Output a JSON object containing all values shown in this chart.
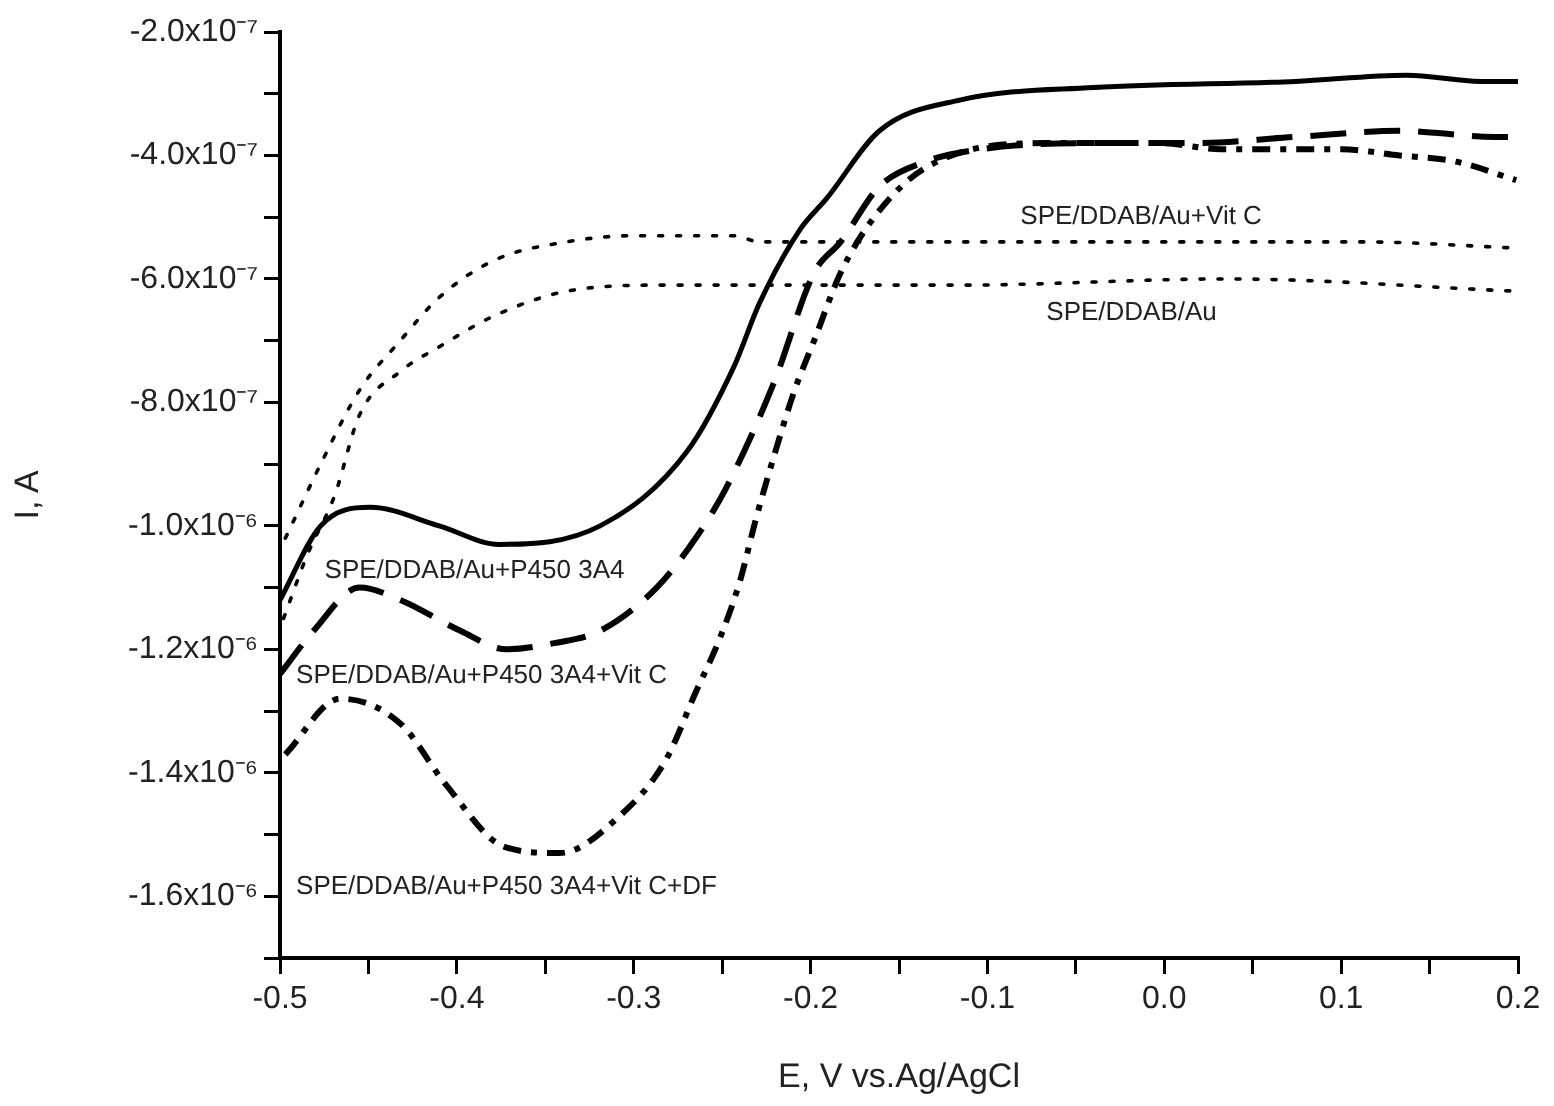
{
  "chart_data": {
    "type": "line",
    "xlabel": "E, V vs.Ag/AgCl",
    "ylabel": "I, A",
    "xlim": [
      -0.5,
      0.2
    ],
    "xticks": [
      {
        "value": -0.5,
        "label": "-0.5"
      },
      {
        "value": -0.45,
        "label": null
      },
      {
        "value": -0.4,
        "label": "-0.4"
      },
      {
        "value": -0.35,
        "label": null
      },
      {
        "value": -0.3,
        "label": "-0.3"
      },
      {
        "value": -0.25,
        "label": null
      },
      {
        "value": -0.2,
        "label": "-0.2"
      },
      {
        "value": -0.15,
        "label": null
      },
      {
        "value": -0.1,
        "label": "-0.1"
      },
      {
        "value": -0.05,
        "label": null
      },
      {
        "value": 0,
        "label": "0.0"
      },
      {
        "value": 0.05,
        "label": null
      },
      {
        "value": 0.1,
        "label": "0.1"
      },
      {
        "value": 0.15,
        "label": null
      },
      {
        "value": 0.2,
        "label": "0.2"
      }
    ],
    "ylim": [
      -1.7e-06,
      -2e-07
    ],
    "yticks": [
      {
        "value": -1.7e-06,
        "label": null
      },
      {
        "value": -1.6e-06,
        "label": "-1.6x10⁻⁶"
      },
      {
        "value": -1.5e-06,
        "label": null
      },
      {
        "value": -1.4e-06,
        "label": "-1.4x10⁻⁶"
      },
      {
        "value": -1.3e-06,
        "label": null
      },
      {
        "value": -1.2e-06,
        "label": "-1.2x10⁻⁶"
      },
      {
        "value": -1.1e-06,
        "label": null
      },
      {
        "value": -1e-06,
        "label": "-1.0x10⁻⁶"
      },
      {
        "value": -9e-07,
        "label": null
      },
      {
        "value": -8e-07,
        "label": "-8.0x10⁻⁷"
      },
      {
        "value": -7e-07,
        "label": null
      },
      {
        "value": -6e-07,
        "label": "-6.0x10⁻⁷"
      },
      {
        "value": -5e-07,
        "label": null
      },
      {
        "value": -4e-07,
        "label": "-4.0x10⁻⁷"
      },
      {
        "value": -3e-07,
        "label": null
      },
      {
        "value": -2e-07,
        "label": "-2.0x10⁻⁷"
      }
    ],
    "grid": false,
    "legend": false,
    "marker": "none",
    "series": [
      {
        "name": "SPE/DDAB/Au+P450 3A4",
        "color": "#000000",
        "line_style": "solid",
        "x": [
          -0.5,
          -0.477,
          -0.449,
          -0.41,
          -0.376,
          -0.319,
          -0.27,
          -0.243,
          -0.229,
          -0.206,
          -0.191,
          -0.161,
          -0.115,
          -0.04,
          0.074,
          0.137,
          0.179,
          0.2
        ],
        "values": [
          -1.12e-06,
          -1e-06,
          -9.7e-07,
          -1e-06,
          -1.03e-06,
          -1e-06,
          -8.8e-07,
          -7.4e-07,
          -6.4e-07,
          -5.2e-07,
          -4.7e-07,
          -3.6e-07,
          -3.1e-07,
          -2.9e-07,
          -2.8e-07,
          -2.7e-07,
          -2.8e-07,
          -2.8e-07
        ]
      },
      {
        "name": "SPE/DDAB/Au+P450 3A4+Vit C",
        "color": "#000000",
        "line_style": "dashed",
        "x": [
          -0.5,
          -0.481,
          -0.455,
          -0.432,
          -0.398,
          -0.372,
          -0.345,
          -0.319,
          -0.287,
          -0.265,
          -0.248,
          -0.221,
          -0.198,
          -0.183,
          -0.161,
          -0.135,
          -0.104,
          -0.04,
          0.017,
          0.074,
          0.133,
          0.187,
          0.2
        ],
        "values": [
          -1.24e-06,
          -1.17e-06,
          -1.1e-06,
          -1.12e-06,
          -1.17e-06,
          -1.2e-06,
          -1.19e-06,
          -1.17e-06,
          -1.1e-06,
          -1.02e-06,
          -9.4e-07,
          -7.7e-07,
          -5.9e-07,
          -5.4e-07,
          -4.5e-07,
          -4.1e-07,
          -3.9e-07,
          -3.8e-07,
          -3.8e-07,
          -3.7e-07,
          -3.6e-07,
          -3.7e-07,
          -3.7e-07
        ]
      },
      {
        "name": "SPE/DDAB/Au+P450 3A4+Vit C+DF",
        "color": "#000000",
        "line_style": "dashdot",
        "x": [
          -0.497,
          -0.466,
          -0.432,
          -0.406,
          -0.373,
          -0.342,
          -0.308,
          -0.282,
          -0.265,
          -0.251,
          -0.24,
          -0.231,
          -0.221,
          -0.209,
          -0.198,
          -0.183,
          -0.164,
          -0.135,
          -0.067,
          -0.002,
          0.032,
          0.1,
          0.133,
          0.165,
          0.199
        ],
        "values": [
          -1.37e-06,
          -1.28e-06,
          -1.32e-06,
          -1.42e-06,
          -1.52e-06,
          -1.53e-06,
          -1.47e-06,
          -1.38e-06,
          -1.27e-06,
          -1.18e-06,
          -1.09e-06,
          -9.9e-07,
          -8.9e-07,
          -7.8e-07,
          -7e-07,
          -5.9e-07,
          -5e-07,
          -4.2e-07,
          -3.8e-07,
          -3.8e-07,
          -3.9e-07,
          -3.9e-07,
          -4e-07,
          -4.1e-07,
          -4.4e-07
        ]
      },
      {
        "name": "SPE/DDAB/Au+Vit C",
        "color": "#000000",
        "line_style": "dotted",
        "x": [
          -0.497,
          -0.492,
          -0.477,
          -0.455,
          -0.432,
          -0.41,
          -0.379,
          -0.338,
          -0.3,
          -0.243,
          -0.229,
          -0.115,
          -0.002,
          0.111,
          0.2
        ],
        "values": [
          -1.02e-06,
          -9.9e-07,
          -9e-07,
          -7.8e-07,
          -7e-07,
          -6.3e-07,
          -5.7e-07,
          -5.4e-07,
          -5.3e-07,
          -5.3e-07,
          -5.4e-07,
          -5.4e-07,
          -5.4e-07,
          -5.4e-07,
          -5.5e-07
        ]
      },
      {
        "name": "SPE/DDAB/Au",
        "color": "#000000",
        "line_style": "dotted",
        "x": [
          -0.498,
          -0.485,
          -0.469,
          -0.455,
          -0.432,
          -0.41,
          -0.379,
          -0.338,
          -0.282,
          -0.225,
          -0.115,
          0.035,
          0.2
        ],
        "values": [
          -1.15e-06,
          -1.05e-06,
          -9.5e-07,
          -8.2e-07,
          -7.5e-07,
          -7.1e-07,
          -6.6e-07,
          -6.2e-07,
          -6.1e-07,
          -6.1e-07,
          -6.1e-07,
          -6e-07,
          -6.2e-07
        ]
      }
    ]
  }
}
